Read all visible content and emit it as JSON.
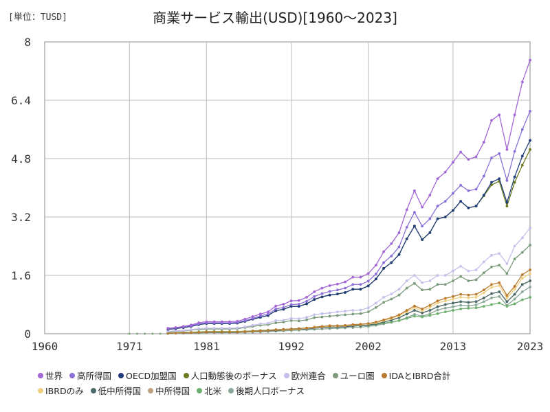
{
  "unit_label": "[単位：TUSD]",
  "chart_data": {
    "type": "line",
    "title": "商業サービス輸出(USD)[1960～2023]",
    "xlim": [
      1960,
      2023
    ],
    "ylim": [
      0,
      8
    ],
    "xticks": [
      "1960",
      "1971",
      "1981",
      "1992",
      "2002",
      "2013",
      "2023"
    ],
    "yticks": [
      "0",
      "1.6",
      "3.2",
      "4.8",
      "6.4",
      "8"
    ],
    "grid": true,
    "legend_position": "bottom",
    "years": [
      1976,
      1977,
      1978,
      1979,
      1980,
      1981,
      1982,
      1983,
      1984,
      1985,
      1986,
      1987,
      1988,
      1989,
      1990,
      1991,
      1992,
      1993,
      1994,
      1995,
      1996,
      1997,
      1998,
      1999,
      2000,
      2001,
      2002,
      2003,
      2004,
      2005,
      2006,
      2007,
      2008,
      2009,
      2010,
      2011,
      2012,
      2013,
      2014,
      2015,
      2016,
      2017,
      2018,
      2019,
      2020,
      2021,
      2022,
      2023
    ],
    "series": [
      {
        "name": "世界",
        "color": "#a366d6",
        "values": [
          0.15,
          0.17,
          0.2,
          0.24,
          0.3,
          0.33,
          0.33,
          0.33,
          0.33,
          0.34,
          0.4,
          0.47,
          0.54,
          0.6,
          0.76,
          0.81,
          0.9,
          0.91,
          1.0,
          1.15,
          1.25,
          1.32,
          1.36,
          1.42,
          1.55,
          1.55,
          1.65,
          1.88,
          2.25,
          2.47,
          2.77,
          3.4,
          3.92,
          3.47,
          3.8,
          4.25,
          4.43,
          4.7,
          4.98,
          4.78,
          4.85,
          5.25,
          5.85,
          6.0,
          5.05,
          6.0,
          6.9,
          7.5
        ]
      },
      {
        "name": "高所得国",
        "color": "#8b6fd8",
        "values": [
          0.14,
          0.16,
          0.19,
          0.22,
          0.27,
          0.3,
          0.3,
          0.3,
          0.3,
          0.31,
          0.36,
          0.42,
          0.49,
          0.54,
          0.68,
          0.72,
          0.8,
          0.81,
          0.89,
          1.02,
          1.1,
          1.16,
          1.2,
          1.25,
          1.35,
          1.35,
          1.44,
          1.64,
          1.95,
          2.13,
          2.38,
          2.92,
          3.33,
          2.95,
          3.15,
          3.5,
          3.63,
          3.85,
          4.07,
          3.92,
          3.96,
          4.32,
          4.82,
          4.94,
          4.2,
          5.0,
          5.6,
          6.1
        ]
      },
      {
        "name": "OECD加盟国",
        "color": "#1f3b7a",
        "values": [
          0.12,
          0.14,
          0.17,
          0.2,
          0.25,
          0.28,
          0.28,
          0.28,
          0.28,
          0.29,
          0.34,
          0.4,
          0.45,
          0.5,
          0.63,
          0.67,
          0.75,
          0.75,
          0.82,
          0.94,
          1.01,
          1.06,
          1.09,
          1.13,
          1.22,
          1.22,
          1.31,
          1.5,
          1.79,
          1.95,
          2.17,
          2.6,
          2.95,
          2.58,
          2.77,
          3.15,
          3.2,
          3.38,
          3.63,
          3.45,
          3.5,
          3.8,
          4.15,
          4.25,
          3.6,
          4.3,
          4.87,
          5.3
        ]
      },
      {
        "name": "人口動態後のボーナス",
        "color": "#6b7a1f",
        "values": [
          0.12,
          0.14,
          0.17,
          0.2,
          0.25,
          0.28,
          0.28,
          0.28,
          0.28,
          0.29,
          0.34,
          0.4,
          0.45,
          0.5,
          0.63,
          0.67,
          0.75,
          0.75,
          0.82,
          0.94,
          1.01,
          1.06,
          1.09,
          1.13,
          1.22,
          1.22,
          1.31,
          1.5,
          1.79,
          1.95,
          2.17,
          2.6,
          2.95,
          2.58,
          2.77,
          3.15,
          3.2,
          3.38,
          3.63,
          3.45,
          3.5,
          3.78,
          4.08,
          4.18,
          3.5,
          4.15,
          4.62,
          5.05
        ]
      },
      {
        "name": "欧州連合",
        "color": "#c5c0ea",
        "values": [
          0.07,
          0.08,
          0.09,
          0.11,
          0.14,
          0.15,
          0.15,
          0.15,
          0.15,
          0.16,
          0.19,
          0.23,
          0.27,
          0.29,
          0.36,
          0.37,
          0.42,
          0.41,
          0.45,
          0.52,
          0.55,
          0.57,
          0.6,
          0.62,
          0.64,
          0.65,
          0.71,
          0.84,
          1.0,
          1.09,
          1.22,
          1.45,
          1.6,
          1.4,
          1.45,
          1.6,
          1.6,
          1.72,
          1.85,
          1.72,
          1.75,
          1.97,
          2.15,
          2.2,
          1.92,
          2.4,
          2.63,
          2.9
        ]
      },
      {
        "name": "ユーロ圏",
        "color": "#7a9a7a",
        "values": [
          0.06,
          0.07,
          0.08,
          0.1,
          0.12,
          0.13,
          0.13,
          0.13,
          0.13,
          0.14,
          0.17,
          0.2,
          0.23,
          0.25,
          0.3,
          0.32,
          0.36,
          0.35,
          0.38,
          0.44,
          0.46,
          0.48,
          0.5,
          0.52,
          0.54,
          0.55,
          0.6,
          0.72,
          0.86,
          0.95,
          1.06,
          1.25,
          1.38,
          1.2,
          1.22,
          1.35,
          1.35,
          1.45,
          1.57,
          1.45,
          1.48,
          1.67,
          1.83,
          1.88,
          1.65,
          2.05,
          2.23,
          2.43
        ]
      },
      {
        "name": "IDAとIBRD合計",
        "color": "#b87a2e",
        "values": [
          0.02,
          0.02,
          0.03,
          0.03,
          0.04,
          0.05,
          0.05,
          0.05,
          0.05,
          0.05,
          0.06,
          0.07,
          0.08,
          0.09,
          0.11,
          0.12,
          0.13,
          0.14,
          0.16,
          0.18,
          0.2,
          0.22,
          0.22,
          0.23,
          0.25,
          0.26,
          0.28,
          0.32,
          0.38,
          0.44,
          0.52,
          0.64,
          0.76,
          0.68,
          0.78,
          0.9,
          0.97,
          1.02,
          1.08,
          1.06,
          1.08,
          1.2,
          1.35,
          1.4,
          1.05,
          1.3,
          1.62,
          1.75
        ]
      },
      {
        "name": "IBRDのみ",
        "color": "#f0d080",
        "values": [
          0.02,
          0.02,
          0.03,
          0.03,
          0.04,
          0.05,
          0.05,
          0.05,
          0.05,
          0.05,
          0.06,
          0.07,
          0.08,
          0.09,
          0.11,
          0.11,
          0.12,
          0.13,
          0.15,
          0.17,
          0.19,
          0.21,
          0.21,
          0.22,
          0.24,
          0.25,
          0.27,
          0.3,
          0.36,
          0.42,
          0.49,
          0.6,
          0.71,
          0.63,
          0.72,
          0.84,
          0.9,
          0.95,
          1.0,
          0.98,
          1.0,
          1.12,
          1.27,
          1.32,
          0.98,
          1.22,
          1.52,
          1.65
        ]
      },
      {
        "name": "低中所得国",
        "color": "#4a6a6a",
        "values": [
          0.01,
          0.02,
          0.02,
          0.03,
          0.03,
          0.04,
          0.04,
          0.04,
          0.04,
          0.04,
          0.05,
          0.06,
          0.07,
          0.08,
          0.09,
          0.1,
          0.11,
          0.12,
          0.13,
          0.15,
          0.17,
          0.18,
          0.18,
          0.19,
          0.21,
          0.22,
          0.24,
          0.27,
          0.32,
          0.37,
          0.44,
          0.54,
          0.64,
          0.57,
          0.64,
          0.74,
          0.8,
          0.84,
          0.88,
          0.86,
          0.88,
          0.98,
          1.1,
          1.15,
          0.88,
          1.08,
          1.35,
          1.45
        ]
      },
      {
        "name": "中所得国",
        "color": "#c0a080",
        "values": [
          0.01,
          0.02,
          0.02,
          0.03,
          0.03,
          0.04,
          0.04,
          0.04,
          0.04,
          0.04,
          0.05,
          0.06,
          0.07,
          0.08,
          0.09,
          0.1,
          0.11,
          0.12,
          0.13,
          0.15,
          0.17,
          0.18,
          0.18,
          0.19,
          0.21,
          0.22,
          0.24,
          0.27,
          0.32,
          0.37,
          0.44,
          0.54,
          0.64,
          0.57,
          0.64,
          0.74,
          0.8,
          0.84,
          0.88,
          0.86,
          0.88,
          0.98,
          1.1,
          1.15,
          0.88,
          1.08,
          1.35,
          1.45
        ]
      },
      {
        "name": "北米",
        "color": "#6cae6c",
        "values": [
          0.03,
          0.03,
          0.04,
          0.04,
          0.05,
          0.06,
          0.06,
          0.06,
          0.06,
          0.06,
          0.07,
          0.08,
          0.09,
          0.1,
          0.11,
          0.12,
          0.13,
          0.14,
          0.15,
          0.16,
          0.18,
          0.19,
          0.2,
          0.21,
          0.23,
          0.22,
          0.23,
          0.25,
          0.29,
          0.32,
          0.36,
          0.42,
          0.48,
          0.46,
          0.5,
          0.55,
          0.6,
          0.64,
          0.68,
          0.7,
          0.71,
          0.75,
          0.8,
          0.84,
          0.75,
          0.82,
          0.93,
          1.0
        ]
      },
      {
        "name": "後期人口ボーナス",
        "color": "#8aa896",
        "values": [
          0.01,
          0.01,
          0.02,
          0.02,
          0.02,
          0.03,
          0.03,
          0.03,
          0.03,
          0.03,
          0.04,
          0.05,
          0.05,
          0.06,
          0.07,
          0.08,
          0.09,
          0.1,
          0.11,
          0.12,
          0.13,
          0.14,
          0.15,
          0.16,
          0.17,
          0.18,
          0.2,
          0.23,
          0.27,
          0.31,
          0.36,
          0.44,
          0.53,
          0.48,
          0.55,
          0.65,
          0.7,
          0.74,
          0.78,
          0.77,
          0.79,
          0.88,
          0.98,
          1.02,
          0.78,
          0.95,
          1.15,
          1.28
        ]
      }
    ]
  }
}
